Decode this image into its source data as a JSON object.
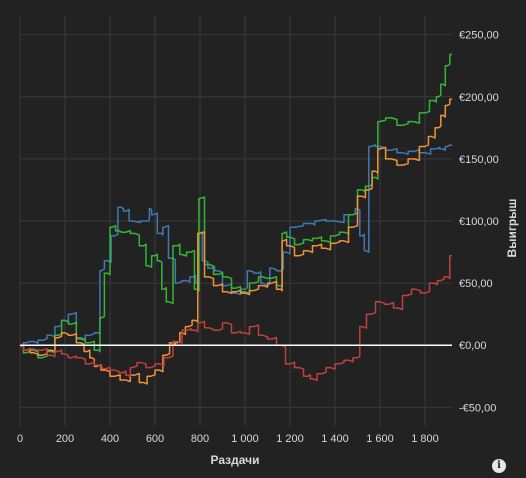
{
  "info_icon": "info-icon",
  "colors": {
    "background": "#222222",
    "grid": "#3a3a3a",
    "text": "#d8d8d8",
    "zero_line": "#ffffff",
    "blue": "#3f78b4",
    "green": "#33b633",
    "orange": "#f0923a",
    "red": "#c0403c"
  },
  "chart_data": {
    "type": "line",
    "xlabel": "Раздачи",
    "ylabel": "Выигрыш",
    "xlim": [
      0,
      1920
    ],
    "ylim": [
      -65,
      265
    ],
    "x_ticks": [
      0,
      200,
      400,
      600,
      800,
      1000,
      1200,
      1400,
      1600,
      1800
    ],
    "x_tick_labels": [
      "0",
      "200",
      "400",
      "600",
      "800",
      "1 000",
      "1 200",
      "1 400",
      "1 600",
      "1 800"
    ],
    "y_ticks": [
      -50,
      0,
      50,
      100,
      150,
      200,
      250
    ],
    "y_tick_labels": [
      "-€50,00",
      "€0,00",
      "€50,00",
      "€100,00",
      "€150,00",
      "€200,00",
      "€250,00"
    ],
    "grid": true,
    "series": [
      {
        "color": "blue",
        "x": [
          0,
          30,
          60,
          100,
          140,
          170,
          200,
          230,
          270,
          310,
          350,
          360,
          390,
          420,
          450,
          470,
          500,
          570,
          580,
          590,
          630,
          640,
          680,
          700,
          740,
          770,
          790,
          800,
          820,
          850,
          880,
          920,
          960,
          1000,
          1020,
          1060,
          1080,
          1100,
          1120,
          1160,
          1180,
          1220,
          1300,
          1320,
          1400,
          1480,
          1500,
          1520,
          1540,
          1560,
          1600,
          1650,
          1700,
          1750,
          1800,
          1850,
          1880,
          1900,
          1920
        ],
        "y": [
          0,
          2,
          3,
          4,
          8,
          15,
          20,
          25,
          5,
          8,
          10,
          60,
          68,
          88,
          111,
          108,
          100,
          100,
          110,
          105,
          90,
          95,
          70,
          50,
          52,
          55,
          50,
          90,
          68,
          62,
          60,
          48,
          42,
          45,
          60,
          58,
          50,
          48,
          62,
          60,
          75,
          95,
          98,
          100,
          100,
          105,
          110,
          88,
          76,
          160,
          160,
          157,
          155,
          156,
          155,
          158,
          158,
          160,
          161
        ]
      },
      {
        "color": "green",
        "x": [
          0,
          30,
          60,
          100,
          140,
          170,
          200,
          230,
          270,
          310,
          350,
          360,
          390,
          410,
          440,
          470,
          510,
          550,
          570,
          600,
          620,
          640,
          660,
          700,
          720,
          760,
          790,
          800,
          840,
          880,
          920,
          960,
          1000,
          1040,
          1080,
          1120,
          1160,
          1170,
          1200,
          1240,
          1280,
          1320,
          1360,
          1400,
          1440,
          1480,
          1520,
          1550,
          1580,
          1600,
          1650,
          1700,
          1750,
          1800,
          1840,
          1860,
          1880,
          1900,
          1920
        ],
        "y": [
          0,
          -6,
          -4,
          -10,
          -5,
          8,
          20,
          17,
          6,
          2,
          -4,
          22,
          58,
          95,
          92,
          91,
          90,
          80,
          64,
          72,
          68,
          45,
          35,
          80,
          73,
          75,
          45,
          118,
          65,
          57,
          55,
          46,
          43,
          50,
          55,
          54,
          48,
          90,
          87,
          81,
          85,
          86,
          84,
          88,
          91,
          105,
          125,
          128,
          135,
          180,
          183,
          177,
          180,
          187,
          197,
          200,
          210,
          225,
          234
        ]
      },
      {
        "color": "orange",
        "x": [
          0,
          30,
          60,
          100,
          140,
          170,
          200,
          230,
          270,
          300,
          320,
          340,
          380,
          420,
          470,
          510,
          550,
          580,
          620,
          650,
          680,
          700,
          720,
          750,
          780,
          800,
          840,
          880,
          920,
          960,
          1000,
          1040,
          1080,
          1120,
          1160,
          1170,
          1200,
          1240,
          1280,
          1320,
          1360,
          1400,
          1440,
          1480,
          1520,
          1550,
          1580,
          1600,
          1650,
          1700,
          1750,
          1800,
          1830,
          1860,
          1880,
          1900,
          1920
        ],
        "y": [
          0,
          -4,
          -6,
          -8,
          -4,
          6,
          10,
          8,
          2,
          -5,
          -10,
          -17,
          -20,
          -25,
          -28,
          -24,
          -30,
          -25,
          -20,
          -8,
          2,
          2,
          10,
          15,
          20,
          90,
          55,
          48,
          43,
          43,
          42,
          44,
          48,
          50,
          45,
          84,
          80,
          72,
          76,
          80,
          78,
          82,
          84,
          95,
          120,
          125,
          140,
          158,
          150,
          145,
          150,
          160,
          168,
          175,
          185,
          193,
          198
        ]
      },
      {
        "color": "red",
        "x": [
          0,
          30,
          60,
          100,
          140,
          170,
          200,
          230,
          270,
          310,
          350,
          380,
          420,
          460,
          480,
          500,
          540,
          580,
          620,
          660,
          700,
          740,
          780,
          800,
          840,
          880,
          920,
          960,
          1000,
          1040,
          1080,
          1120,
          1160,
          1200,
          1240,
          1280,
          1300,
          1340,
          1380,
          1420,
          1460,
          1500,
          1520,
          1560,
          1600,
          1640,
          1680,
          1720,
          1760,
          1800,
          1840,
          1870,
          1900,
          1920
        ],
        "y": [
          0,
          -4,
          -3,
          -4,
          -8,
          -5,
          -7,
          -10,
          -10,
          -15,
          -16,
          -19,
          -20,
          -22,
          -24,
          -18,
          -14,
          -18,
          -15,
          -10,
          3,
          12,
          12,
          18,
          14,
          12,
          18,
          10,
          10,
          15,
          8,
          5,
          0,
          -15,
          -18,
          -25,
          -27,
          -23,
          -18,
          -15,
          -12,
          -10,
          15,
          25,
          35,
          33,
          30,
          40,
          45,
          42,
          50,
          52,
          55,
          72
        ]
      }
    ]
  }
}
